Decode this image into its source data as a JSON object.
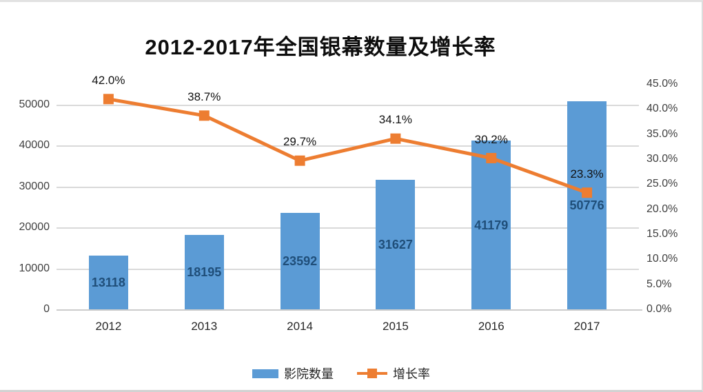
{
  "page": {
    "background": "#ffffff",
    "border_top_color": "#e2e2e2",
    "border_bottom_color": "#d2d2d2"
  },
  "chart_data": {
    "type": "combo_bar_line",
    "title": "2012-2017年全国银幕数量及增长率",
    "categories": [
      "2012",
      "2013",
      "2014",
      "2015",
      "2016",
      "2017"
    ],
    "series": [
      {
        "name": "影院数量",
        "type": "bar",
        "axis": "left",
        "color": "#5B9BD5",
        "value_label_color": "#1F4E79",
        "values": [
          13118,
          18195,
          23592,
          31627,
          41179,
          50776
        ],
        "value_labels": [
          "13118",
          "18195",
          "23592",
          "31627",
          "41179",
          "50776"
        ]
      },
      {
        "name": "增长率",
        "type": "line",
        "axis": "right",
        "color": "#ED7D31",
        "values": [
          42.0,
          38.7,
          29.7,
          34.1,
          30.2,
          23.3
        ],
        "point_labels": [
          "42.0%",
          "38.7%",
          "29.7%",
          "34.1%",
          "30.2%",
          "23.3%"
        ]
      }
    ],
    "left_axis": {
      "ylim": [
        0,
        55000
      ],
      "ticks": [
        {
          "label": "0",
          "value": 0
        },
        {
          "label": "10000",
          "value": 10000
        },
        {
          "label": "20000",
          "value": 20000
        },
        {
          "label": "30000",
          "value": 30000
        },
        {
          "label": "40000",
          "value": 40000
        },
        {
          "label": "50000",
          "value": 50000
        }
      ]
    },
    "right_axis": {
      "ylim": [
        0,
        45
      ],
      "ticks": [
        {
          "label": "0.0%",
          "value": 0
        },
        {
          "label": "5.0%",
          "value": 5
        },
        {
          "label": "10.0%",
          "value": 10
        },
        {
          "label": "15.0%",
          "value": 15
        },
        {
          "label": "20.0%",
          "value": 20
        },
        {
          "label": "25.0%",
          "value": 25
        },
        {
          "label": "30.0%",
          "value": 30
        },
        {
          "label": "35.0%",
          "value": 35
        },
        {
          "label": "40.0%",
          "value": 40
        },
        {
          "label": "45.0%",
          "value": 45
        }
      ]
    },
    "grid": true,
    "grid_color": "#d9d9d9",
    "axis_text_color": "#3f3f3f",
    "legend_position": "bottom"
  }
}
